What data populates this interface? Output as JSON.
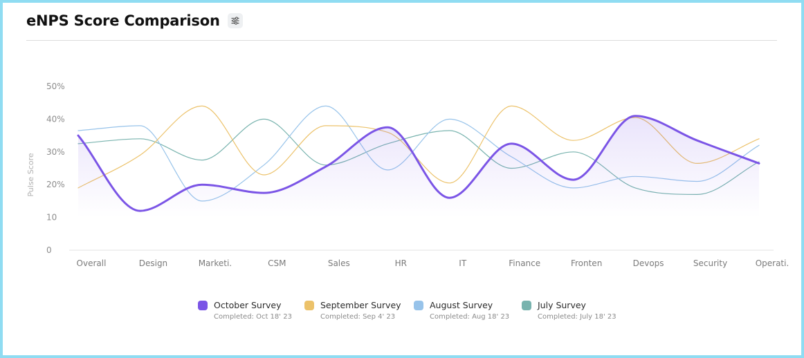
{
  "header": {
    "title": "eNPS Score Comparison",
    "settings_icon": "sliders-icon"
  },
  "colors": {
    "frame": "#8fdcf2",
    "october": "#7b55e6",
    "september": "#ecc26a",
    "august": "#97c3ea",
    "july": "#78b3ae"
  },
  "chart_data": {
    "type": "line",
    "ylabel": "Pulse  Score",
    "ylim": [
      0,
      50
    ],
    "yticks": [
      {
        "value": 0,
        "label": "0"
      },
      {
        "value": 10,
        "label": "10"
      },
      {
        "value": 20,
        "label": "20%"
      },
      {
        "value": 30,
        "label": "30%"
      },
      {
        "value": 40,
        "label": "40%"
      },
      {
        "value": 50,
        "label": "50%"
      }
    ],
    "grid": false,
    "legend": "bottom-center",
    "categories": [
      "Overall",
      "Design",
      "Marketi.",
      "CSM",
      "Sales",
      "HR",
      "IT",
      "Finance",
      "Fronten",
      "Devops",
      "Security",
      "Operati."
    ],
    "series": [
      {
        "name": "July Survey",
        "sub": "Completed: July 18' 23",
        "color": "#78b3ae",
        "values": [
          32.5,
          34,
          27.5,
          40,
          26,
          32.5,
          36.5,
          25,
          30,
          19,
          17,
          27
        ]
      },
      {
        "name": "August Survey",
        "sub": "Completed: Aug 18' 23",
        "color": "#97c3ea",
        "values": [
          36.5,
          38,
          15,
          26,
          44,
          24.5,
          40,
          28.5,
          19,
          22.5,
          21,
          32
        ]
      },
      {
        "name": "September Survey",
        "sub": "Completed: Sep 4' 23",
        "color": "#ecc26a",
        "values": [
          19,
          29,
          44,
          23,
          38,
          36,
          20.5,
          44,
          33.5,
          40.5,
          26.5,
          34
        ]
      },
      {
        "name": "October Survey",
        "sub": "Completed: Oct 18' 23",
        "color": "#7b55e6",
        "values": [
          35,
          12,
          20,
          17.5,
          25.5,
          37.5,
          16,
          32.5,
          21.5,
          41,
          33.5,
          26.5
        ],
        "fill": true
      }
    ]
  }
}
